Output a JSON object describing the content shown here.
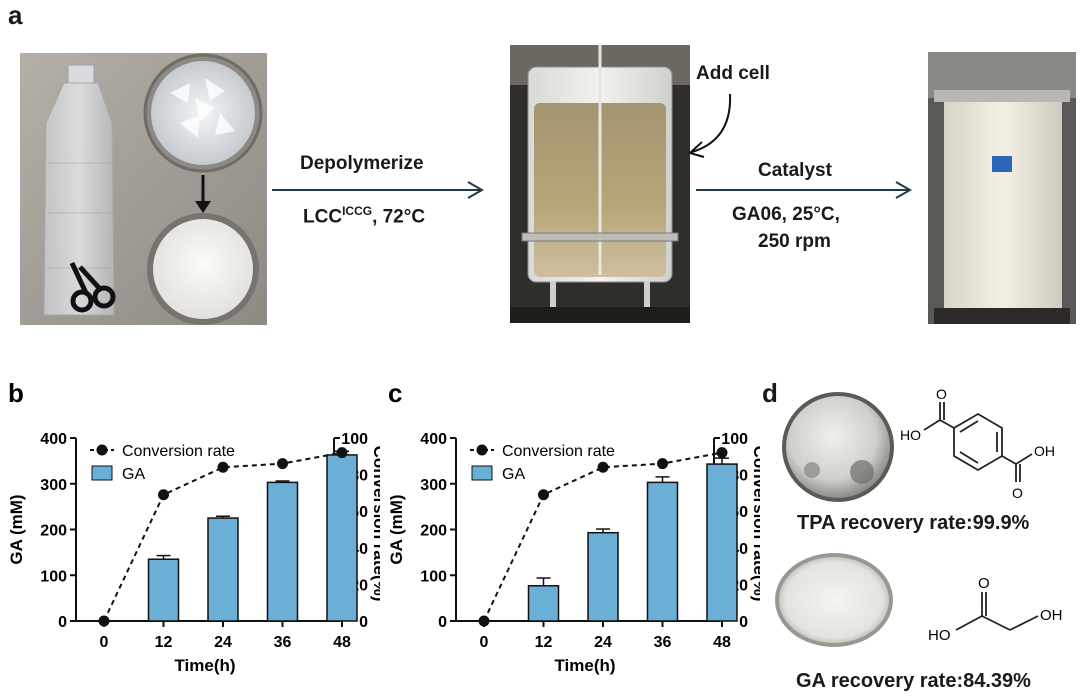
{
  "panel_a": {
    "letter": "a",
    "step1_label": "Depolymerize",
    "step1_condition_main": "LCC",
    "step1_condition_sup": "ICCG",
    "step1_condition_tail": ", 72°C",
    "add_cell_label": "Add cell",
    "step2_label": "Catalyst",
    "step2_condition_line1": "GA06, 25°C,",
    "step2_condition_line2": "250 rpm"
  },
  "panel_d": {
    "letter": "d",
    "tpa_caption": "TPA recovery rate:99.9%",
    "ga_caption": "GA recovery rate:84.39%",
    "tpa_labels": {
      "ho": "HO",
      "oh": "OH",
      "o1": "O",
      "o2": "O"
    },
    "ga_labels": {
      "ho": "HO",
      "oh": "OH",
      "o": "O"
    }
  },
  "colors": {
    "bar": "#6baed6",
    "line": "#111111",
    "arrow": "#1f3a4d"
  },
  "chart_data": [
    {
      "letter": "b",
      "type": "bar+line",
      "categories": [
        "0",
        "12",
        "24",
        "36",
        "48"
      ],
      "xlabel": "Time(h)",
      "ylabel": "GA (mM)",
      "ylabel_right": "Conversion rate(%)",
      "ylim": [
        0,
        400
      ],
      "yticks": [
        "0",
        "100",
        "200",
        "300",
        "400"
      ],
      "ylim_right": [
        0,
        100
      ],
      "yticks_right": [
        "0",
        "20",
        "40",
        "60",
        "80",
        "100"
      ],
      "legend": {
        "line": "Conversion rate",
        "bar": "GA"
      },
      "series": [
        {
          "name": "GA",
          "kind": "bar",
          "values": [
            0,
            135,
            225,
            303,
            363
          ],
          "errors": [
            0,
            8,
            4,
            3,
            8
          ]
        },
        {
          "name": "Conversion rate",
          "kind": "line",
          "values": [
            0,
            69,
            84,
            86,
            92
          ]
        }
      ]
    },
    {
      "letter": "c",
      "type": "bar+line",
      "categories": [
        "0",
        "12",
        "24",
        "36",
        "48"
      ],
      "xlabel": "Time(h)",
      "ylabel": "GA (mM)",
      "ylabel_right": "Conversion rate(%)",
      "ylim": [
        0,
        400
      ],
      "yticks": [
        "0",
        "100",
        "200",
        "300",
        "400"
      ],
      "ylim_right": [
        0,
        100
      ],
      "yticks_right": [
        "0",
        "20",
        "40",
        "60",
        "80",
        "100"
      ],
      "legend": {
        "line": "Conversion rate",
        "bar": "GA"
      },
      "series": [
        {
          "name": "GA",
          "kind": "bar",
          "values": [
            0,
            77,
            193,
            303,
            343
          ],
          "errors": [
            0,
            17,
            8,
            12,
            13
          ]
        },
        {
          "name": "Conversion rate",
          "kind": "line",
          "values": [
            0,
            69,
            84,
            86,
            92
          ]
        }
      ]
    }
  ]
}
